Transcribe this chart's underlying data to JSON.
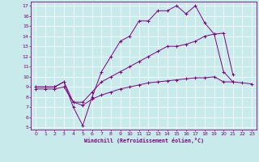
{
  "bg_color": "#c8eaea",
  "line_color": "#800080",
  "grid_color": "#ffffff",
  "xlim": [
    -0.5,
    23.5
  ],
  "ylim": [
    4.8,
    17.4
  ],
  "xticks": [
    0,
    1,
    2,
    3,
    4,
    5,
    6,
    7,
    8,
    9,
    10,
    11,
    12,
    13,
    14,
    15,
    16,
    17,
    18,
    19,
    20,
    21,
    22,
    23
  ],
  "yticks": [
    5,
    6,
    7,
    8,
    9,
    10,
    11,
    12,
    13,
    14,
    15,
    16,
    17
  ],
  "xlabel": "Windchill (Refroidissement éolien,°C)",
  "line1_x": [
    0,
    1,
    2,
    3,
    4,
    5,
    6,
    7,
    8,
    9,
    10,
    11,
    12,
    13,
    14,
    15,
    16,
    17,
    18,
    19,
    20,
    21
  ],
  "line1_y": [
    9.0,
    9.0,
    9.0,
    9.5,
    7.0,
    5.2,
    8.0,
    10.5,
    12.0,
    13.5,
    14.0,
    15.5,
    15.5,
    16.5,
    16.5,
    17.0,
    16.2,
    17.0,
    15.3,
    14.2,
    10.5,
    9.5
  ],
  "line2_x": [
    0,
    1,
    2,
    3,
    4,
    5,
    6,
    7,
    8,
    9,
    10,
    11,
    12,
    13,
    14,
    15,
    16,
    17,
    18,
    19,
    20,
    21
  ],
  "line2_y": [
    9.0,
    9.0,
    9.0,
    9.5,
    7.5,
    7.5,
    8.5,
    9.5,
    10.0,
    10.5,
    11.0,
    11.5,
    12.0,
    12.5,
    13.0,
    13.0,
    13.2,
    13.5,
    14.0,
    14.2,
    14.3,
    10.2
  ],
  "line3_x": [
    0,
    1,
    2,
    3,
    4,
    5,
    6,
    7,
    8,
    9,
    10,
    11,
    12,
    13,
    14,
    15,
    16,
    17,
    18,
    19,
    20,
    21,
    22,
    23
  ],
  "line3_y": [
    8.8,
    8.8,
    8.8,
    9.0,
    7.5,
    7.2,
    7.8,
    8.2,
    8.5,
    8.8,
    9.0,
    9.2,
    9.4,
    9.5,
    9.6,
    9.7,
    9.8,
    9.9,
    9.9,
    10.0,
    9.5,
    9.5,
    9.4,
    9.3
  ]
}
